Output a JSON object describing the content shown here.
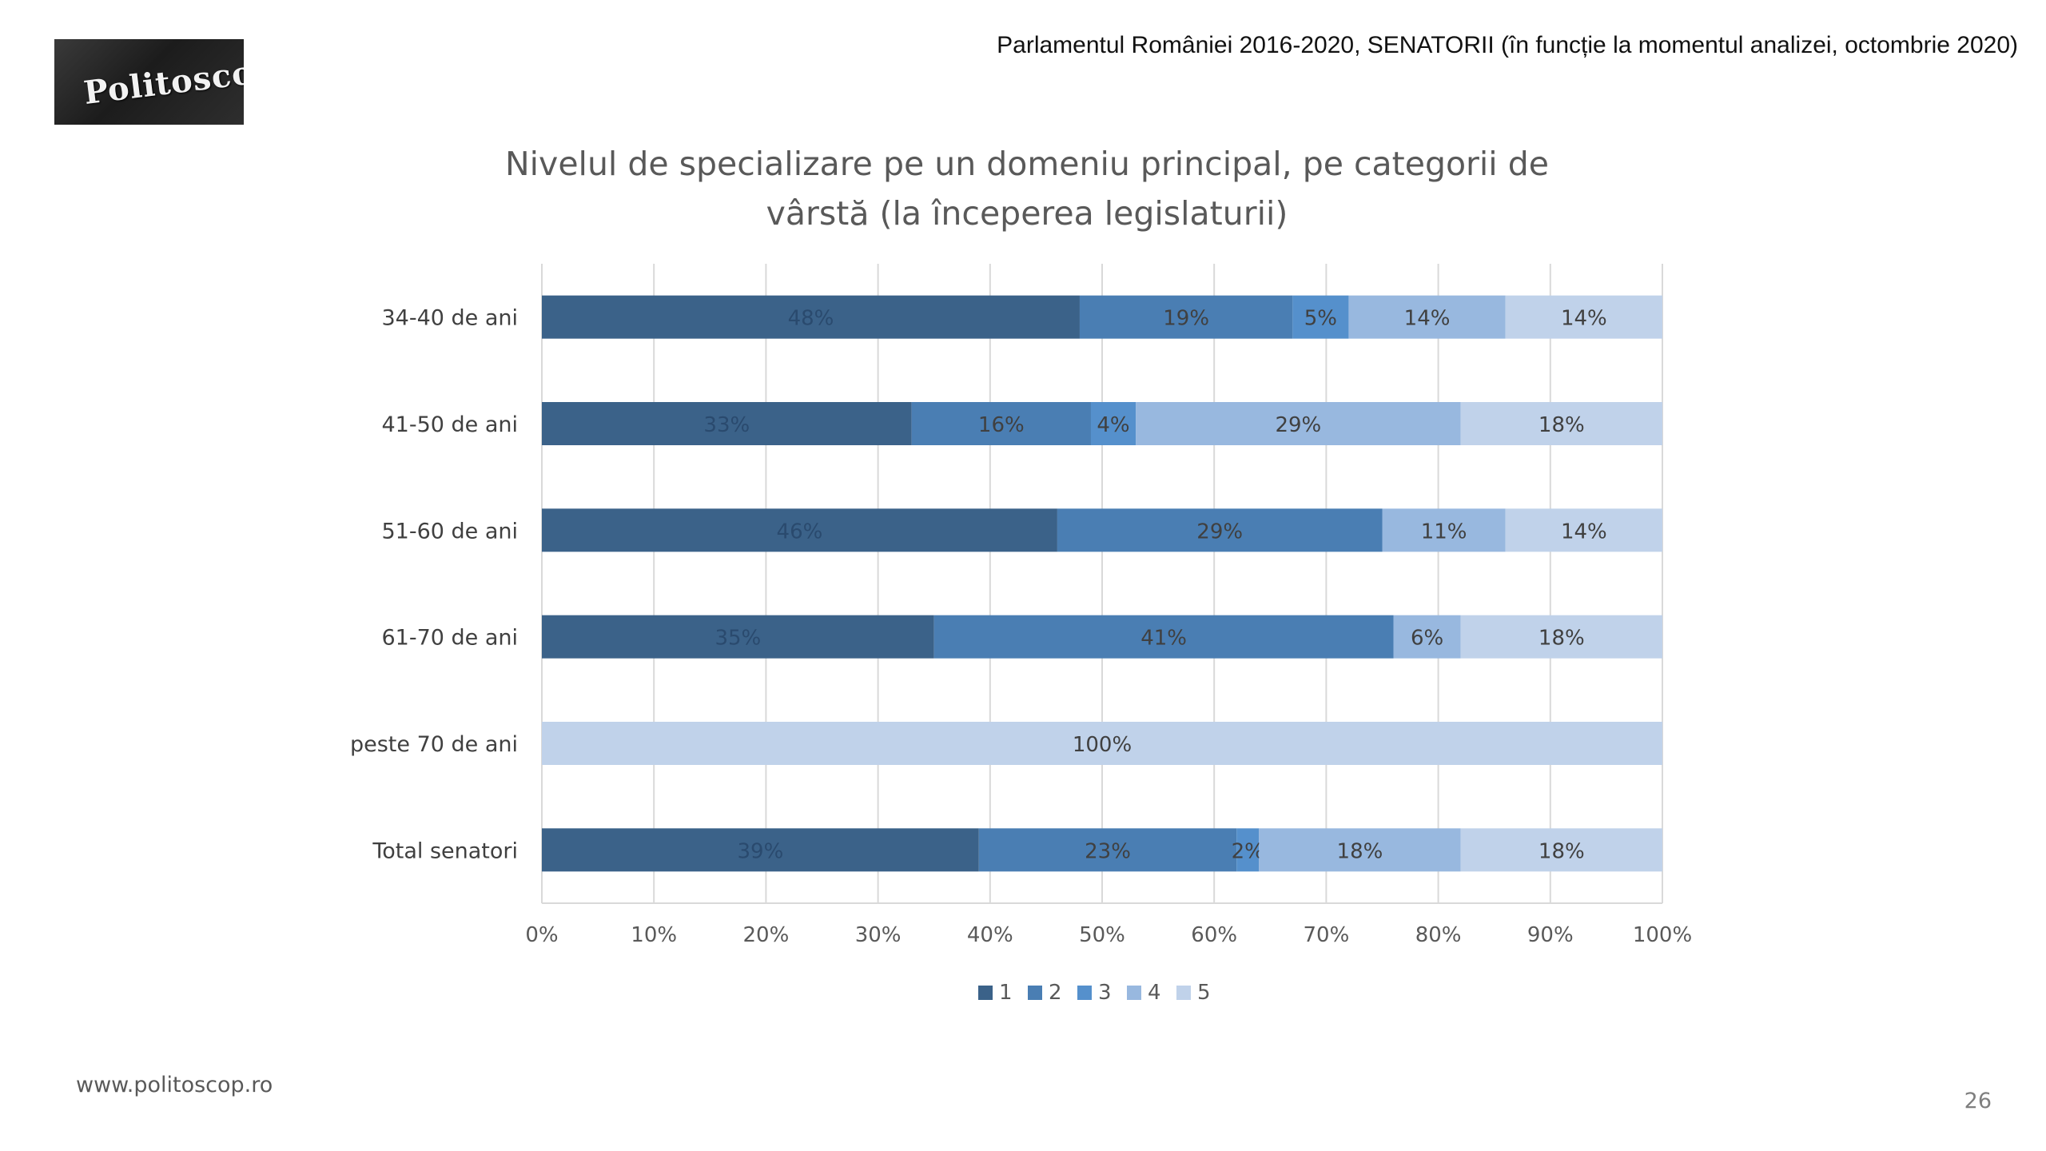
{
  "logo": {
    "text": "Politoscop"
  },
  "header_note": "Parlamentul României 2016-2020, SENATORII (în funcție la momentul analizei, octombrie 2020)",
  "footer": {
    "url": "www.politoscop.ro",
    "page_number": "26"
  },
  "chart_data": {
    "type": "bar",
    "orientation": "horizontal",
    "stacked": true,
    "title_lines": [
      "Nivelul de specializare pe un domeniu principal, pe categorii de",
      "vârstă (la începerea legislaturii)"
    ],
    "categories": [
      "34-40 de ani",
      "41-50 de ani",
      "51-60 de ani",
      "61-70 de ani",
      "peste 70 de ani",
      "Total senatori"
    ],
    "series": [
      {
        "name": "1",
        "color": "#3b6289",
        "values": [
          48,
          33,
          46,
          35,
          0,
          39
        ],
        "labels": [
          "48%",
          "33%",
          "46%",
          "35%",
          "",
          "39%"
        ]
      },
      {
        "name": "2",
        "color": "#4a7eb3",
        "values": [
          19,
          16,
          29,
          41,
          0,
          23
        ],
        "labels": [
          "19%",
          "16%",
          "29%",
          "41%",
          "",
          "23%"
        ]
      },
      {
        "name": "3",
        "color": "#5590cc",
        "values": [
          5,
          4,
          0,
          0,
          0,
          2
        ],
        "labels": [
          "5%",
          "4%",
          "",
          "",
          "",
          "2%"
        ]
      },
      {
        "name": "4",
        "color": "#98b8df",
        "values": [
          14,
          29,
          11,
          6,
          0,
          18
        ],
        "labels": [
          "14%",
          "29%",
          "11%",
          "6%",
          "",
          "18%"
        ]
      },
      {
        "name": "5",
        "color": "#c0d2ea",
        "values": [
          14,
          18,
          14,
          18,
          100,
          18
        ],
        "labels": [
          "14%",
          "18%",
          "14%",
          "18%",
          "100%",
          "18%"
        ]
      }
    ],
    "xticks": [
      "0%",
      "10%",
      "20%",
      "30%",
      "40%",
      "50%",
      "60%",
      "70%",
      "80%",
      "90%",
      "100%"
    ],
    "xlim": [
      0,
      100
    ],
    "grid": true,
    "legend_position": "bottom",
    "label_colors": {
      "dark": "#2a4a6e",
      "light": "#404040"
    }
  }
}
